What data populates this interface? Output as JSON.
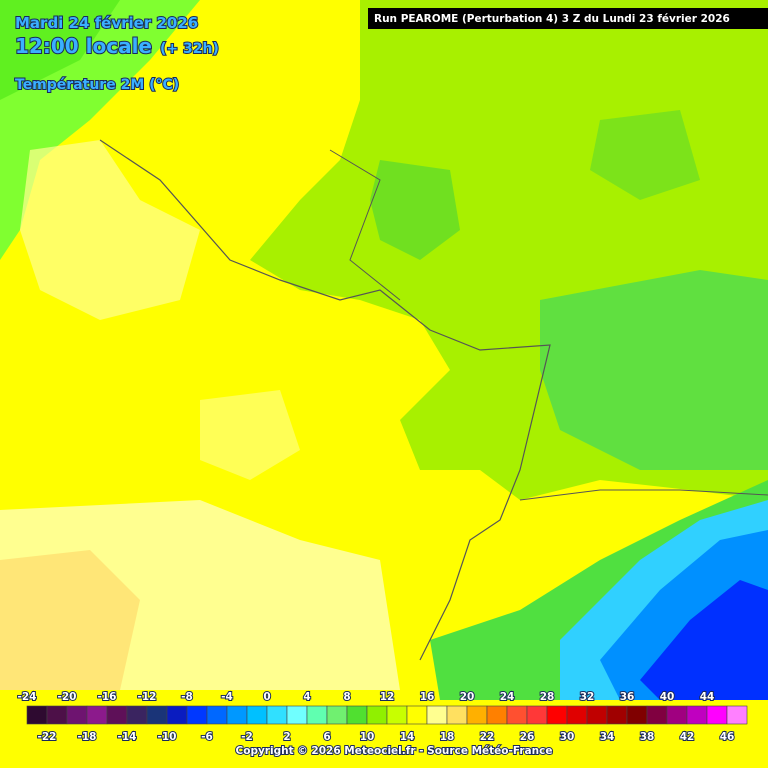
{
  "header": {
    "date": "Mardi 24 février 2026",
    "time": "12:00 locale",
    "lead": "(+ 32h)",
    "parameter": "Température 2M (°C)",
    "run": "Run PEAROME (Perturbation 4) 3 Z du Lundi 23 février 2026"
  },
  "legend": {
    "values": [
      -24,
      -22,
      -20,
      -18,
      -16,
      -14,
      -12,
      -10,
      -8,
      -6,
      -4,
      -2,
      0,
      2,
      4,
      6,
      8,
      10,
      12,
      14,
      16,
      18,
      20,
      22,
      24,
      26,
      28,
      30,
      32,
      34,
      36,
      38,
      40,
      42,
      44,
      46
    ],
    "colors": [
      "#2e0a30",
      "#4d1048",
      "#6e1470",
      "#8c1a8c",
      "#5e1058",
      "#3a2460",
      "#1a3478",
      "#0a1cc0",
      "#0038ff",
      "#0068ff",
      "#0098ff",
      "#00c0ff",
      "#30e0ff",
      "#70ffff",
      "#60ffb0",
      "#70f070",
      "#50e030",
      "#90f000",
      "#c8ff00",
      "#ffff00",
      "#ffff90",
      "#ffe060",
      "#ffb000",
      "#ff8000",
      "#ff5030",
      "#ff3838",
      "#ff0000",
      "#e00000",
      "#c00000",
      "#a00000",
      "#800000",
      "#800040",
      "#a00080",
      "#c000c0",
      "#ff00ff",
      "#ff80ff"
    ]
  },
  "footer": {
    "copyright": "Copyright © 2026 Meteociel.fr - Source Météo-France"
  }
}
